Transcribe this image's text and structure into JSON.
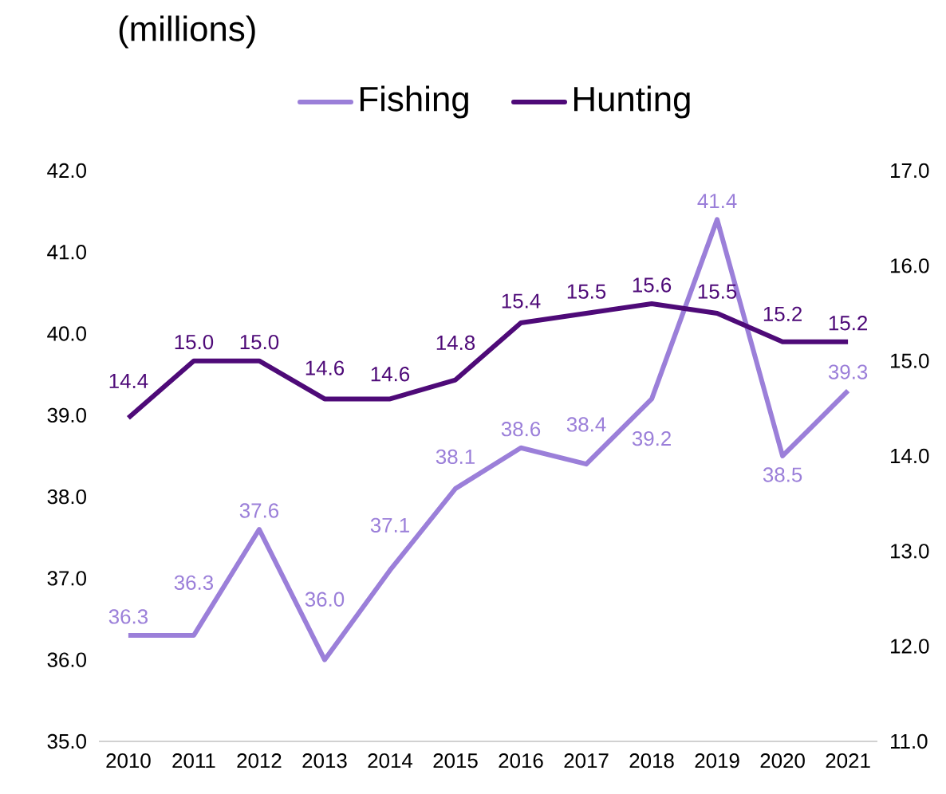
{
  "chart_data": {
    "type": "line",
    "title": "(millions)",
    "categories": [
      "2010",
      "2011",
      "2012",
      "2013",
      "2014",
      "2015",
      "2016",
      "2017",
      "2018",
      "2019",
      "2020",
      "2021"
    ],
    "series": [
      {
        "name": "Fishing",
        "color": "#9b7fd9",
        "values": [
          36.3,
          36.3,
          37.6,
          36.0,
          37.1,
          38.1,
          38.6,
          38.4,
          39.2,
          41.4,
          38.5,
          39.3
        ],
        "value_labels": [
          "36.3",
          "36.3",
          "37.6",
          "36.0",
          "37.1",
          "38.1",
          "38.6",
          "38.4",
          "39.2",
          "41.4",
          "38.5",
          "39.3"
        ]
      },
      {
        "name": "Hunting",
        "color": "#4e0a78",
        "axis": "y2",
        "values": [
          14.4,
          15.0,
          15.0,
          14.6,
          14.6,
          14.8,
          15.4,
          15.5,
          15.6,
          15.5,
          15.2,
          15.2
        ],
        "value_labels": [
          "14.4",
          "15.0",
          "15.0",
          "14.6",
          "14.6",
          "14.8",
          "15.4",
          "15.5",
          "15.6",
          "15.5",
          "15.2",
          "15.2"
        ]
      }
    ],
    "ylim": [
      35,
      42
    ],
    "yticks": [
      {
        "value": 35,
        "label": "35.0"
      },
      {
        "value": 36,
        "label": "36.0"
      },
      {
        "value": 37,
        "label": "37.0"
      },
      {
        "value": 38,
        "label": "38.0"
      },
      {
        "value": 39,
        "label": "39.0"
      },
      {
        "value": 40,
        "label": "40.0"
      },
      {
        "value": 41,
        "label": "41.0"
      },
      {
        "value": 42,
        "label": "42.0"
      }
    ],
    "y2lim": [
      11,
      17
    ],
    "y2ticks": [
      {
        "value": 11,
        "label": "11.0"
      },
      {
        "value": 12,
        "label": "12.0"
      },
      {
        "value": 13,
        "label": "13.0"
      },
      {
        "value": 14,
        "label": "14.0"
      },
      {
        "value": 15,
        "label": "15.0"
      },
      {
        "value": 16,
        "label": "16.0"
      },
      {
        "value": 17,
        "label": "17.0"
      }
    ],
    "legend": "top",
    "grid": false,
    "marker": "none",
    "line_style": "solid"
  }
}
